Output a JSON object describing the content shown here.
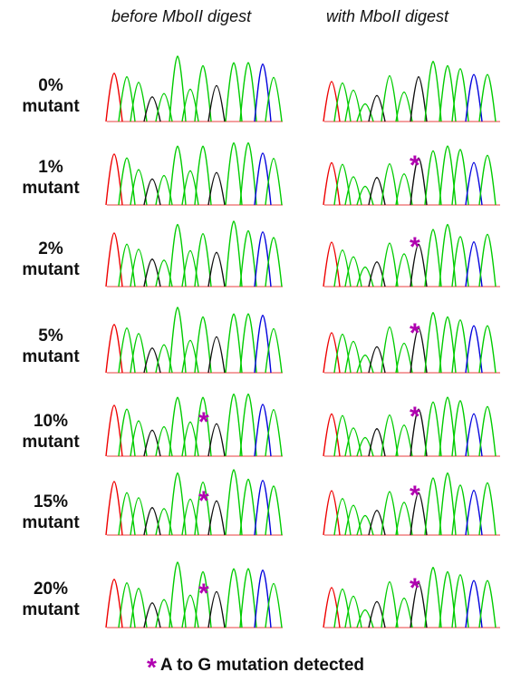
{
  "columns": {
    "left": "before MboII digest",
    "right": "with MboII digest"
  },
  "rows": [
    {
      "pct": "0%",
      "word": "mutant",
      "star_before": false,
      "star_after": false
    },
    {
      "pct": "1%",
      "word": "mutant",
      "star_before": false,
      "star_after": true
    },
    {
      "pct": "2%",
      "word": "mutant",
      "star_before": false,
      "star_after": true
    },
    {
      "pct": "5%",
      "word": "mutant",
      "star_before": false,
      "star_after": true
    },
    {
      "pct": "10%",
      "word": "mutant",
      "star_before": true,
      "star_after": true
    },
    {
      "pct": "15%",
      "word": "mutant",
      "star_before": true,
      "star_after": true
    },
    {
      "pct": "20%",
      "word": "mutant",
      "star_before": true,
      "star_after": true
    }
  ],
  "legend": {
    "symbol": "*",
    "text": "A to G mutation detected"
  },
  "colors": {
    "A_trace": "#00cc00",
    "C_trace": "#0000dd",
    "G_trace": "#111111",
    "T_trace": "#ee0000",
    "marker": "#b000b0"
  }
}
